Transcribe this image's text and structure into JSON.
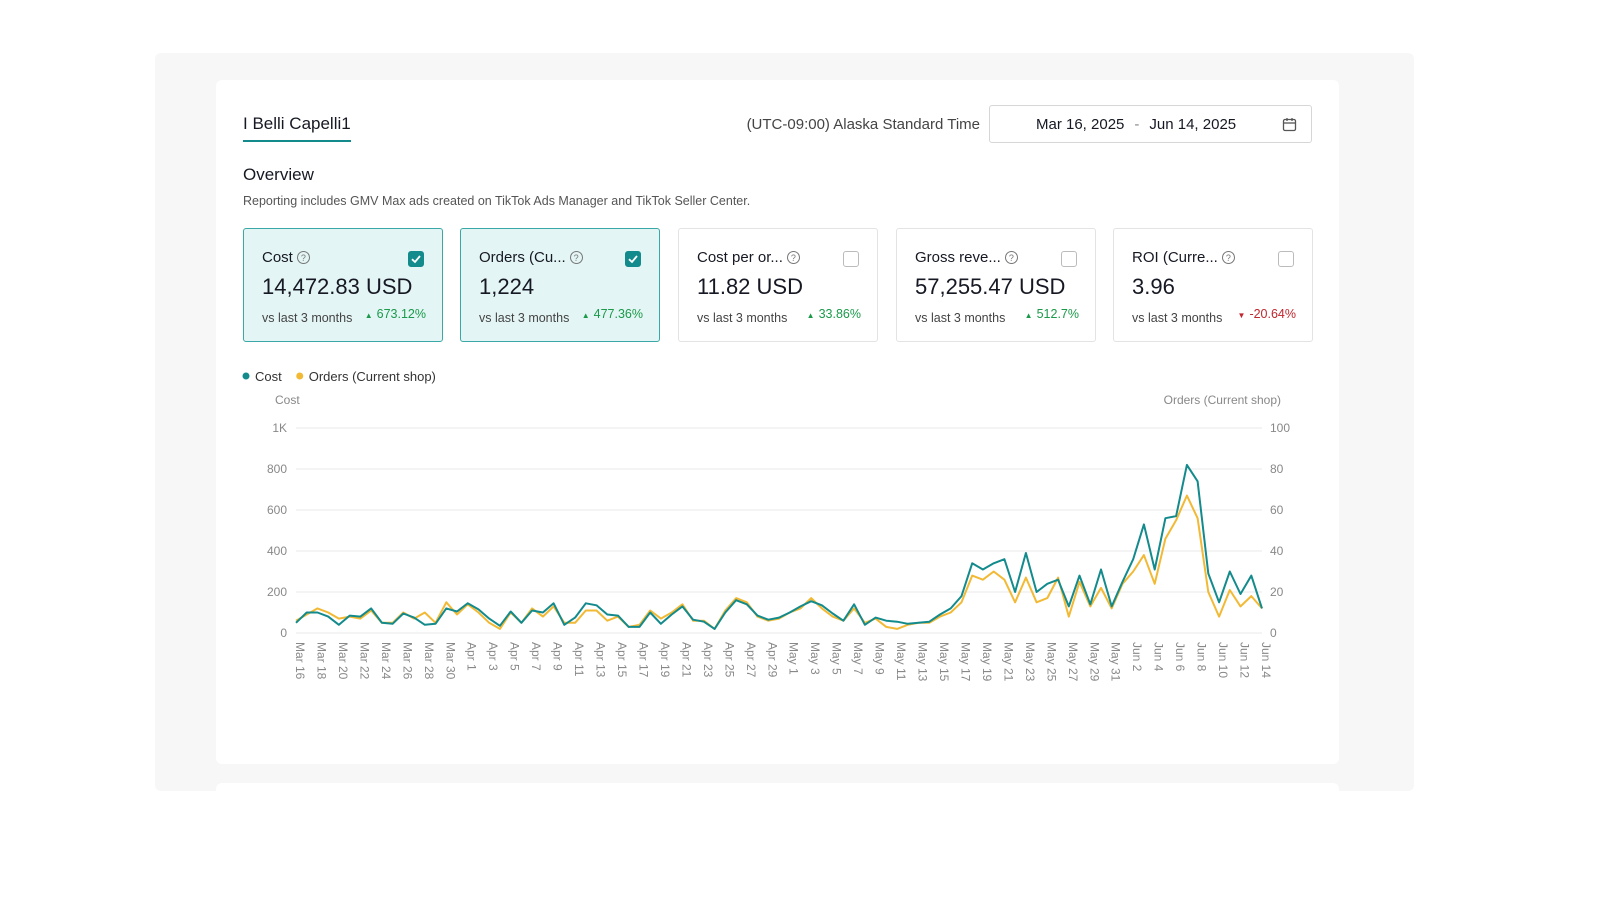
{
  "header": {
    "tab": "I Belli Capelli1",
    "timezone": "(UTC-09:00) Alaska Standard Time",
    "date_start": "Mar 16, 2025",
    "date_separator": "-",
    "date_end": "Jun 14, 2025"
  },
  "overview": {
    "title": "Overview",
    "note": "Reporting includes GMV Max ads created on TikTok Ads Manager and TikTok Seller Center."
  },
  "cards": [
    {
      "title": "Cost",
      "value": "14,472.83 USD",
      "compare": "vs last 3 months",
      "change": "673.12%",
      "trend": "up",
      "checked": true
    },
    {
      "title": "Orders (Cu...",
      "value": "1,224",
      "compare": "vs last 3 months",
      "change": "477.36%",
      "trend": "up",
      "checked": true
    },
    {
      "title": "Cost per or...",
      "value": "11.82 USD",
      "compare": "vs last 3 months",
      "change": "33.86%",
      "trend": "up",
      "checked": false
    },
    {
      "title": "Gross reve...",
      "value": "57,255.47 USD",
      "compare": "vs last 3 months",
      "change": "512.7%",
      "trend": "up",
      "checked": false
    },
    {
      "title": "ROI (Curre...",
      "value": "3.96",
      "compare": "vs last 3 months",
      "change": "-20.64%",
      "trend": "down",
      "checked": false
    }
  ],
  "chart_data": {
    "type": "line",
    "y_label": "Cost",
    "y2_label": "Orders (Current shop)",
    "categories": [
      "Mar 16",
      null,
      "Mar 18",
      null,
      "Mar 20",
      null,
      "Mar 22",
      null,
      "Mar 24",
      null,
      "Mar 26",
      null,
      "Mar 28",
      null,
      "Mar 30",
      null,
      "Apr 1",
      null,
      "Apr 3",
      null,
      "Apr 5",
      null,
      "Apr 7",
      null,
      "Apr 9",
      null,
      "Apr 11",
      null,
      "Apr 13",
      null,
      "Apr 15",
      null,
      "Apr 17",
      null,
      "Apr 19",
      null,
      "Apr 21",
      null,
      "Apr 23",
      null,
      "Apr 25",
      null,
      "Apr 27",
      null,
      "Apr 29",
      null,
      "May 1",
      null,
      "May 3",
      null,
      "May 5",
      null,
      "May 7",
      null,
      "May 9",
      null,
      "May 11",
      null,
      "May 13",
      null,
      "May 15",
      null,
      "May 17",
      null,
      "May 19",
      null,
      "May 21",
      null,
      "May 23",
      null,
      "May 25",
      null,
      "May 27",
      null,
      "May 29",
      null,
      "May 31",
      null,
      "Jun 2",
      null,
      "Jun 4",
      null,
      "Jun 6",
      null,
      "Jun 8",
      null,
      "Jun 10",
      null,
      "Jun 12",
      null,
      "Jun 14"
    ],
    "series": [
      {
        "name": "Cost",
        "color": "#138a8c",
        "values": [
          50,
          100,
          100,
          80,
          40,
          85,
          80,
          120,
          50,
          45,
          95,
          75,
          40,
          45,
          120,
          105,
          145,
          115,
          70,
          35,
          105,
          50,
          110,
          100,
          145,
          40,
          75,
          145,
          135,
          90,
          85,
          30,
          30,
          100,
          45,
          90,
          130,
          65,
          55,
          20,
          100,
          160,
          140,
          85,
          65,
          75,
          100,
          130,
          155,
          135,
          95,
          60,
          140,
          40,
          75,
          60,
          55,
          45,
          50,
          55,
          90,
          120,
          180,
          340,
          310,
          340,
          360,
          200,
          390,
          200,
          240,
          260,
          130,
          280,
          140,
          310,
          130,
          250,
          360,
          530,
          310,
          560,
          570,
          820,
          740,
          290,
          150,
          300,
          190,
          280,
          120
        ]
      },
      {
        "name": "Orders (Current shop)",
        "color": "#f2b935",
        "axis": "y2",
        "values": [
          6,
          9,
          12,
          10,
          7,
          8,
          7,
          11,
          5,
          5,
          10,
          7,
          10,
          5,
          15,
          9,
          14,
          10,
          5,
          2,
          10,
          5,
          12,
          8,
          13,
          5,
          5,
          11,
          11,
          6,
          8,
          3,
          4,
          11,
          7,
          10,
          14,
          6,
          6,
          2,
          11,
          17,
          15,
          8,
          6,
          7,
          10,
          12,
          17,
          12,
          8,
          6,
          12,
          5,
          7,
          3,
          2,
          4,
          5,
          5,
          8,
          10,
          15,
          28,
          26,
          30,
          26,
          15,
          27,
          15,
          17,
          27,
          8,
          25,
          13,
          22,
          12,
          24,
          30,
          38,
          24,
          46,
          55,
          67,
          56,
          20,
          8,
          21,
          13,
          18,
          12
        ]
      }
    ],
    "ylim": [
      0,
      1000
    ],
    "yticks": [
      0,
      200,
      400,
      600,
      800,
      {
        "value": 1000,
        "label": "1K"
      }
    ],
    "y2lim": [
      0,
      100
    ],
    "y2ticks": [
      0,
      20,
      40,
      60,
      80,
      100
    ],
    "grid": true,
    "legend": "top-left"
  }
}
